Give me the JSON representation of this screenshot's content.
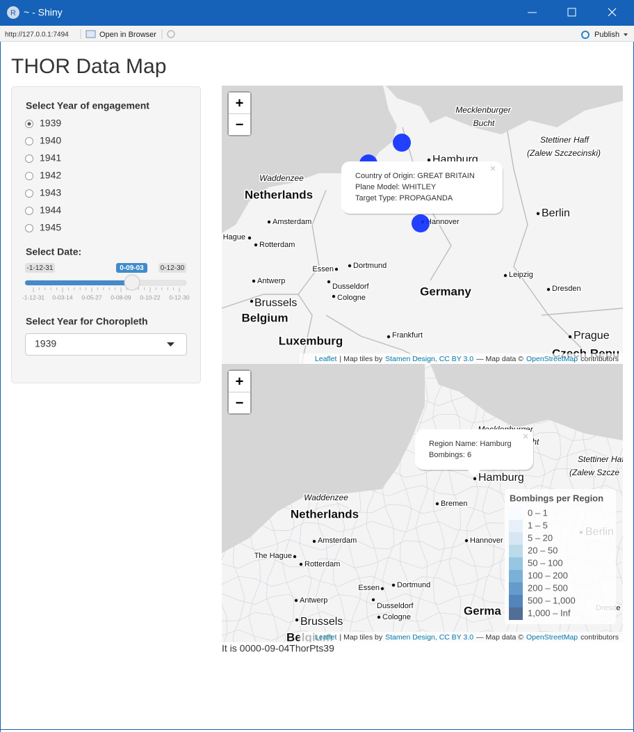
{
  "window": {
    "icon": "R",
    "title": "~ - Shiny"
  },
  "toolbar": {
    "url": "http://127.0.0.1:7494",
    "open_in_browser": "Open in Browser",
    "publish": "Publish"
  },
  "app": {
    "title": "THOR Data Map",
    "year_input": {
      "label": "Select Year of engagement",
      "options": [
        "1939",
        "1940",
        "1941",
        "1942",
        "1943",
        "1944",
        "1945"
      ],
      "selected": 0
    },
    "date_slider": {
      "label": "Select Date:",
      "min": "-1-12-31",
      "max": "0-12-30",
      "value": "0-09-03",
      "ticks": [
        "-1-12-31",
        "0-03-14",
        "0-05-27",
        "0-08-09",
        "0-10-22",
        "0-12-30"
      ]
    },
    "choropleth_input": {
      "label": "Select Year for Choropleth",
      "value": "1939"
    },
    "maps": [
      {
        "zoom_in": "+",
        "zoom_out": "−",
        "marker_color": "#0a2dff",
        "labels": [
          "Mecklenburger",
          "Bucht",
          "Stettiner Haff",
          "(Zalew Szczecinski)",
          "Hamburg",
          "Waddenzee",
          "Netherlands",
          "Amsterdam",
          "Hague",
          "Rotterdam",
          "Berlin",
          "Hannover",
          "Essen",
          "Dortmund",
          "Antwerp",
          "Dusseldorf",
          "Cologne",
          "Brussels",
          "Belgium",
          "Germany",
          "Leipzig",
          "Dresden",
          "Frankfurt",
          "Luxemburg",
          "Prague",
          "Czech Repu"
        ],
        "popup": {
          "lines": [
            "Country of Origin: GREAT BRITAIN",
            "Plane Model: WHITLEY",
            "Target Type: PROPAGANDA"
          ],
          "close": "×"
        },
        "attribution": [
          "Leaflet",
          "| Map tiles by",
          "Stamen Design, CC BY 3.0",
          "— Map data ©",
          "OpenStreetMap",
          "contributors"
        ]
      },
      {
        "zoom_in": "+",
        "zoom_out": "−",
        "labels": [
          "Mecklenburger",
          "Bucht",
          "Stettiner Haff",
          "(Zalew Szcze",
          "Hamburg",
          "Bremen",
          "Waddenzee",
          "Netherlands",
          "Amsterdam",
          "Hannover",
          "Berlin",
          "The Hague",
          "Rotterdam",
          "Essen",
          "Dortmund",
          "Antwerp",
          "Dusseldorf",
          "Cologne",
          "Brussels",
          "Germa",
          "Dresde",
          "Belgium"
        ],
        "popup": {
          "lines": [
            "Region Name: Hamburg",
            "Bombings: 6"
          ],
          "close": "×"
        },
        "legend": {
          "title": "Bombings per Region",
          "items": [
            {
              "label": "0 – 1",
              "color": "#f7fbff"
            },
            {
              "label": "1 – 5",
              "color": "#deebf7"
            },
            {
              "label": "5 – 20",
              "color": "#c6dbef"
            },
            {
              "label": "20 – 50",
              "color": "#9ecae1"
            },
            {
              "label": "50 – 100",
              "color": "#6baed6"
            },
            {
              "label": "100 – 200",
              "color": "#4292c6"
            },
            {
              "label": "200 – 500",
              "color": "#2171b5"
            },
            {
              "label": "500 – 1,000",
              "color": "#08519c"
            },
            {
              "label": "1,000 – Inf",
              "color": "#08306b"
            }
          ]
        },
        "attribution": [
          "Leaflet",
          "| Map tiles by",
          "Stamen Design, CC BY 3.0",
          "— Map data ©",
          "OpenStreetMap",
          "contributors"
        ]
      }
    ],
    "footer": "It is 0000-09-04ThorPts39"
  }
}
